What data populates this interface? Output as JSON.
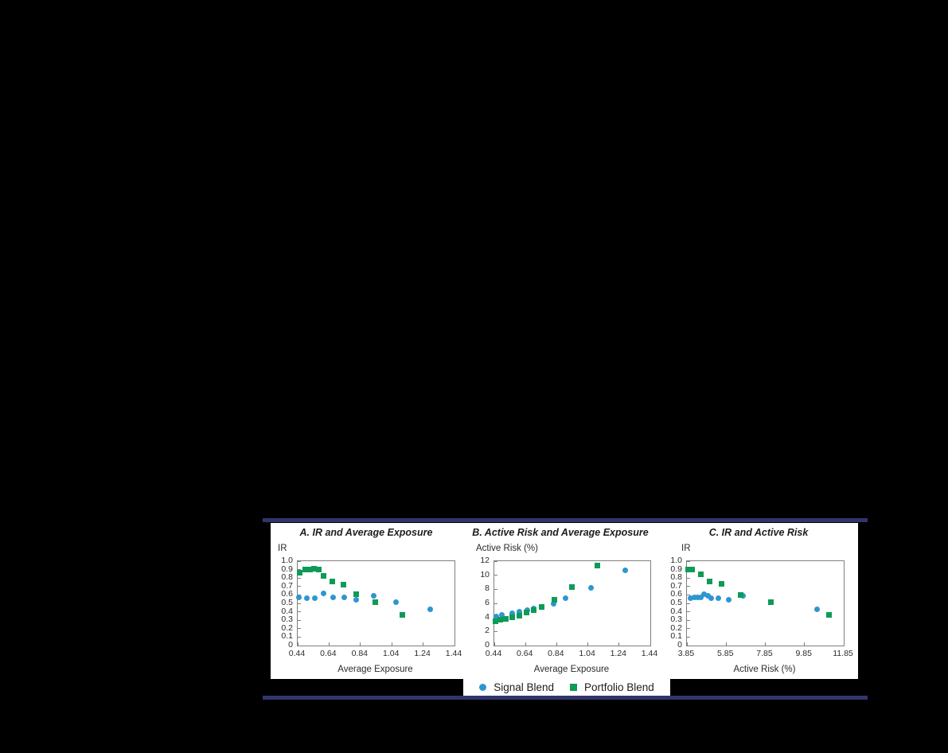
{
  "figure": {
    "background_color": "#000000",
    "panel_background_color": "#FFFFFF",
    "accent_rule_color": "#32356B",
    "plot_border_color": "#7F7F7F"
  },
  "legend": {
    "items": [
      {
        "label": "Signal Blend",
        "marker": "circle",
        "color": "#2D96D1"
      },
      {
        "label": "Portfolio Blend",
        "marker": "square",
        "color": "#0D9B57"
      }
    ]
  },
  "chart_data": [
    {
      "type": "scatter",
      "title": "A. IR and Average Exposure",
      "xlabel": "Average Exposure",
      "ylabel": "IR",
      "xlim": [
        0.44,
        1.44
      ],
      "ylim": [
        0,
        1.0
      ],
      "xtick_values": [
        0.44,
        0.64,
        0.84,
        1.04,
        1.24,
        1.44
      ],
      "xtick_labels": [
        "0.44",
        "0.64",
        "0.84",
        "1.04",
        "1.24",
        "1.44"
      ],
      "ytick_values": [
        1.0,
        0.9,
        0.8,
        0.7,
        0.6,
        0.5,
        0.4,
        0.3,
        0.2,
        0.1,
        0
      ],
      "ytick_labels": [
        "1.0",
        "0.9",
        "0.8",
        "0.7",
        "0.6",
        "0.5",
        "0.4",
        "0.3",
        "0.2",
        "0.1",
        "0"
      ],
      "grid": false,
      "series": [
        {
          "name": "Signal Blend",
          "marker": "circle",
          "color": "#2D96D1",
          "points": [
            [
              0.45,
              0.575
            ],
            [
              0.5,
              0.565
            ],
            [
              0.55,
              0.565
            ],
            [
              0.605,
              0.615
            ],
            [
              0.665,
              0.57
            ],
            [
              0.735,
              0.57
            ],
            [
              0.815,
              0.54
            ],
            [
              0.925,
              0.585
            ],
            [
              1.065,
              0.515
            ],
            [
              1.285,
              0.425
            ]
          ]
        },
        {
          "name": "Portfolio Blend",
          "marker": "square",
          "color": "#0D9B57",
          "points": [
            [
              0.455,
              0.86
            ],
            [
              0.49,
              0.9
            ],
            [
              0.52,
              0.905
            ],
            [
              0.545,
              0.91
            ],
            [
              0.575,
              0.905
            ],
            [
              0.605,
              0.83
            ],
            [
              0.66,
              0.76
            ],
            [
              0.73,
              0.725
            ],
            [
              0.815,
              0.605
            ],
            [
              0.935,
              0.515
            ],
            [
              1.105,
              0.365
            ]
          ]
        }
      ]
    },
    {
      "type": "scatter",
      "title": "B. Active Risk and Average Exposure",
      "xlabel": "Average Exposure",
      "ylabel": "Active Risk (%)",
      "xlim": [
        0.44,
        1.44
      ],
      "ylim": [
        0,
        12
      ],
      "xtick_values": [
        0.44,
        0.64,
        0.84,
        1.04,
        1.24,
        1.44
      ],
      "xtick_labels": [
        "0.44",
        "0.64",
        "0.84",
        "1.04",
        "1.24",
        "1.44"
      ],
      "ytick_values": [
        12,
        10,
        8,
        6,
        4,
        2,
        0
      ],
      "ytick_labels": [
        "12",
        "10",
        "8",
        "6",
        "4",
        "2",
        "0"
      ],
      "grid": false,
      "series": [
        {
          "name": "Signal Blend",
          "marker": "circle",
          "color": "#2D96D1",
          "points": [
            [
              0.455,
              4.15
            ],
            [
              0.49,
              4.35
            ],
            [
              0.555,
              4.6
            ],
            [
              0.6,
              4.8
            ],
            [
              0.65,
              5.0
            ],
            [
              0.695,
              5.25
            ],
            [
              0.745,
              5.45
            ],
            [
              0.82,
              5.9
            ],
            [
              0.895,
              6.7
            ],
            [
              1.06,
              8.2
            ],
            [
              1.28,
              10.7
            ]
          ]
        },
        {
          "name": "Portfolio Blend",
          "marker": "square",
          "color": "#0D9B57",
          "points": [
            [
              0.45,
              3.5
            ],
            [
              0.48,
              3.65
            ],
            [
              0.515,
              3.8
            ],
            [
              0.555,
              4.0
            ],
            [
              0.6,
              4.3
            ],
            [
              0.645,
              4.7
            ],
            [
              0.695,
              5.0
            ],
            [
              0.745,
              5.5
            ],
            [
              0.825,
              6.55
            ],
            [
              0.935,
              8.3
            ],
            [
              1.1,
              11.35
            ]
          ]
        }
      ]
    },
    {
      "type": "scatter",
      "title": "C. IR and Active Risk",
      "xlabel": "Active Risk (%)",
      "ylabel": "IR",
      "xlim": [
        3.85,
        11.85
      ],
      "ylim": [
        0,
        1.0
      ],
      "xtick_values": [
        3.85,
        5.85,
        7.85,
        9.85,
        11.85
      ],
      "xtick_labels": [
        "3.85",
        "5.85",
        "7.85",
        "9.85",
        "11.85"
      ],
      "ytick_values": [
        1.0,
        0.9,
        0.8,
        0.7,
        0.6,
        0.5,
        0.4,
        0.3,
        0.2,
        0.1,
        0
      ],
      "ytick_labels": [
        "1.0",
        "0.9",
        "0.8",
        "0.7",
        "0.6",
        "0.5",
        "0.4",
        "0.3",
        "0.2",
        "0.1",
        "0"
      ],
      "grid": false,
      "series": [
        {
          "name": "Signal Blend",
          "marker": "circle",
          "color": "#2D96D1",
          "points": [
            [
              4.05,
              0.565
            ],
            [
              4.22,
              0.575
            ],
            [
              4.38,
              0.57
            ],
            [
              4.55,
              0.57
            ],
            [
              4.73,
              0.605
            ],
            [
              4.92,
              0.585
            ],
            [
              5.1,
              0.565
            ],
            [
              5.45,
              0.56
            ],
            [
              5.98,
              0.54
            ],
            [
              6.73,
              0.585
            ],
            [
              10.5,
              0.425
            ]
          ]
        },
        {
          "name": "Portfolio Blend",
          "marker": "square",
          "color": "#0D9B57",
          "points": [
            [
              3.93,
              0.905
            ],
            [
              4.12,
              0.905
            ],
            [
              4.55,
              0.84
            ],
            [
              5.0,
              0.76
            ],
            [
              5.6,
              0.735
            ],
            [
              6.58,
              0.6
            ],
            [
              8.15,
              0.51
            ],
            [
              11.1,
              0.365
            ]
          ]
        }
      ]
    }
  ]
}
